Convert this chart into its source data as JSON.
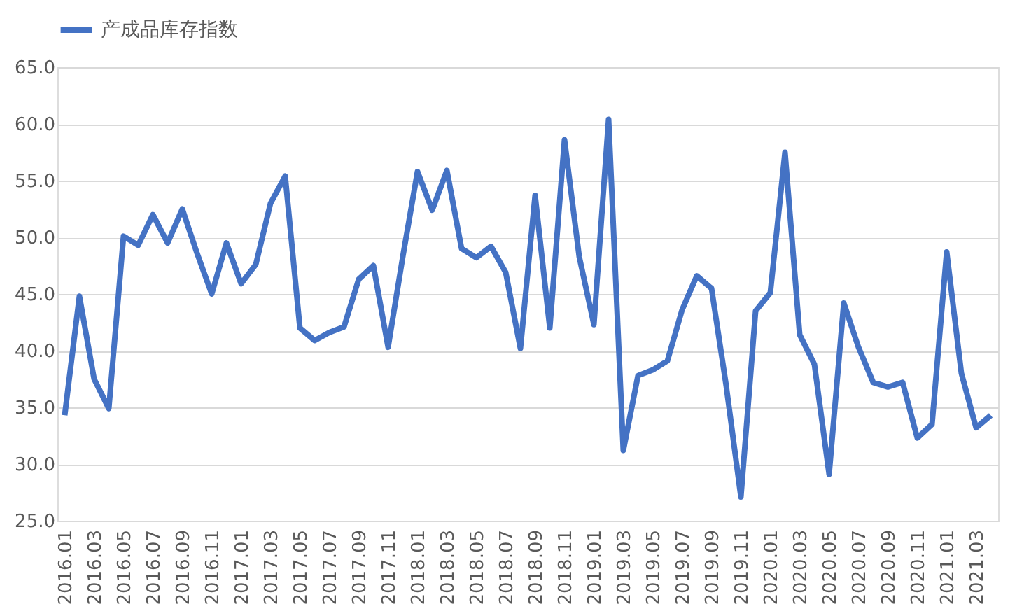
{
  "chart_data": {
    "type": "line",
    "categories": [
      "2016.01",
      null,
      "2016.03",
      null,
      "2016.05",
      null,
      "2016.07",
      null,
      "2016.09",
      null,
      "2016.11",
      null,
      "2017.01",
      null,
      "2017.03",
      null,
      "2017.05",
      null,
      "2017.07",
      null,
      "2017.09",
      null,
      "2017.11",
      null,
      "2018.01",
      null,
      "2018.03",
      null,
      "2018.05",
      null,
      "2018.07",
      null,
      "2018.09",
      null,
      "2018.11",
      null,
      "2019.01",
      null,
      "2019.03",
      null,
      "2019.05",
      null,
      "2019.07",
      null,
      "2019.09",
      null,
      "2019.11",
      null,
      "2020.01",
      null,
      "2020.03",
      null,
      "2020.05",
      null,
      "2020.07",
      null,
      "2020.09",
      null,
      "2020.11",
      null,
      "2021.01",
      null,
      "2021.03",
      null
    ],
    "series": [
      {
        "name": "产成品库存指数",
        "color": "#4472c4",
        "values": [
          34.3,
          44.8,
          37.5,
          34.9,
          50.1,
          49.3,
          52.0,
          49.5,
          52.5,
          48.6,
          45.0,
          49.5,
          45.9,
          47.6,
          53.0,
          55.4,
          42.0,
          40.9,
          41.6,
          42.1,
          46.3,
          47.5,
          40.3,
          48.3,
          55.8,
          52.4,
          55.9,
          49.0,
          48.2,
          49.2,
          46.9,
          40.2,
          53.7,
          42.0,
          58.6,
          48.3,
          42.3,
          60.4,
          31.2,
          37.8,
          38.3,
          39.1,
          43.6,
          46.6,
          45.5,
          36.9,
          27.1,
          43.5,
          45.1,
          57.5,
          41.4,
          38.8,
          29.1,
          44.2,
          40.3,
          37.2,
          36.8,
          37.2,
          32.3,
          33.5,
          48.7,
          38.0,
          33.2,
          34.3
        ]
      }
    ],
    "ylim": [
      25,
      65
    ],
    "yticks": [
      {
        "value": 25,
        "label": "25.0"
      },
      {
        "value": 30,
        "label": "30.0"
      },
      {
        "value": 35,
        "label": "35.0"
      },
      {
        "value": 40,
        "label": "40.0"
      },
      {
        "value": 45,
        "label": "45.0"
      },
      {
        "value": 50,
        "label": "50.0"
      },
      {
        "value": 55,
        "label": "55.0"
      },
      {
        "value": 60,
        "label": "60.0"
      },
      {
        "value": 65,
        "label": "65.0"
      }
    ],
    "grid": "y",
    "legend": "top",
    "marker": "none",
    "line_style": "solid"
  }
}
